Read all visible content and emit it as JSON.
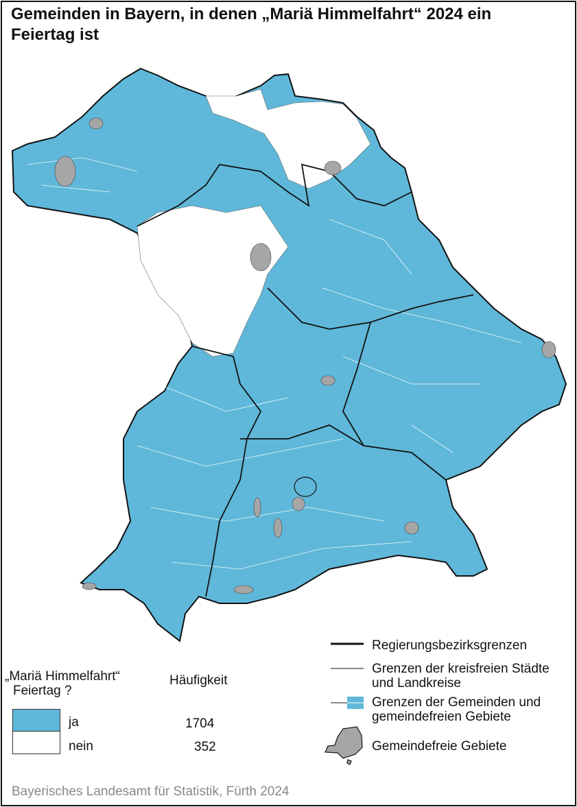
{
  "title": "Gemeinden in Bayern, in denen „Mariä Himmelfahrt“ 2024 ein Feiertag ist",
  "colors": {
    "ja": "#5fb8d9",
    "nein": "#ffffff",
    "gemeindefrei": "#a6a6a6"
  },
  "legend_left": {
    "heading": "„Mariä Himmelfahrt“",
    "heading2": "Feiertag ?",
    "count_heading": "Häufigkeit",
    "items": [
      {
        "label": "ja",
        "count": "1704"
      },
      {
        "label": "nein",
        "count": "352"
      }
    ]
  },
  "legend_right": {
    "items": [
      {
        "label": "Regierungsbezirksgrenzen"
      },
      {
        "label": "Grenzen der kreisfreien Städte und Landkreise"
      },
      {
        "label": "Grenzen der Gemeinden und gemeindefreien Gebiete"
      },
      {
        "label": "Gemeindefreie Gebiete"
      }
    ]
  },
  "source": "Bayerisches Landesamt für Statistik, Fürth 2024"
}
